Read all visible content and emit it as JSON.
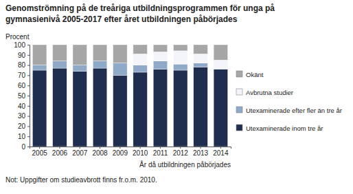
{
  "chart_data": {
    "type": "bar",
    "stacked": true,
    "title": "Genomströmning på de treåriga utbildningsprogrammen för unga på gymnasienivå  2005-2017 efter året utbildningen påbörjades",
    "y_label": "Procent",
    "x_label": "År då utbildningen påbörjades",
    "annotations": [
      "Not: Uppgifter om studieavbrott finns fr.o.m. 2010."
    ],
    "categories": [
      "2005",
      "2006",
      "2007",
      "2008",
      "2009",
      "2010",
      "2011",
      "2012",
      "2013",
      "2014"
    ],
    "series": [
      {
        "name": "Utexaminerade inom tre år",
        "color": "#1f2d4f",
        "values": [
          75,
          77,
          74,
          77,
          70,
          73,
          76,
          75,
          78,
          76
        ]
      },
      {
        "name": "Utexaminerade efter fler än tre år",
        "color": "#8fa9c9",
        "values": [
          5,
          7,
          6,
          7,
          12,
          7,
          8,
          6,
          4,
          0
        ]
      },
      {
        "name": "Avbrutna studier",
        "color": "#f3f5fa",
        "values": [
          null,
          null,
          null,
          null,
          null,
          11,
          9,
          13,
          9,
          9
        ]
      },
      {
        "name": "Okänt",
        "color": "#a6a6a6",
        "values": [
          20,
          16,
          20,
          16,
          18,
          9,
          7,
          6,
          9,
          15
        ]
      }
    ],
    "ylim": [
      0,
      100
    ],
    "yticks": [
      0,
      10,
      20,
      30,
      40,
      50,
      60,
      70,
      80,
      90,
      100
    ],
    "grid": false,
    "legend": "right"
  }
}
